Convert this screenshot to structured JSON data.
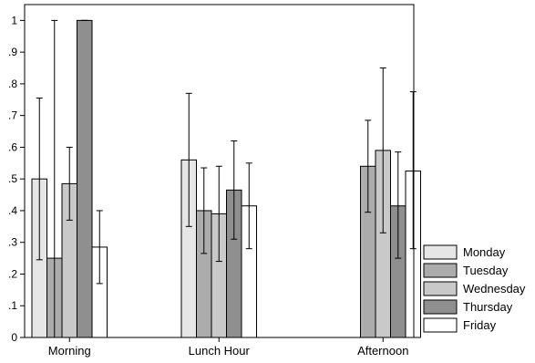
{
  "chart_data": {
    "type": "bar",
    "categories": [
      "Morning",
      "Lunch Hour",
      "Afternoon"
    ],
    "y_ticks": [
      {
        "value": 0,
        "label": "0"
      },
      {
        "value": 0.1,
        "label": ".1"
      },
      {
        "value": 0.2,
        "label": ".2"
      },
      {
        "value": 0.3,
        "label": ".3"
      },
      {
        "value": 0.4,
        "label": ".4"
      },
      {
        "value": 0.5,
        "label": ".5"
      },
      {
        "value": 0.6,
        "label": ".6"
      },
      {
        "value": 0.7,
        "label": ".7"
      },
      {
        "value": 0.8,
        "label": ".8"
      },
      {
        "value": 0.9,
        "label": ".9"
      },
      {
        "value": 1,
        "label": "1"
      }
    ],
    "ylim": [
      0,
      1.05
    ],
    "error_bars": true,
    "legend_position": "right-bottom",
    "series": [
      {
        "name": "Monday",
        "color": "#e6e6e6",
        "values": [
          0.5,
          0.56,
          null
        ],
        "lower": [
          0.245,
          0.35,
          null
        ],
        "upper": [
          0.755,
          0.77,
          null
        ]
      },
      {
        "name": "Tuesday",
        "color": "#acacac",
        "values": [
          0.25,
          0.4,
          0.54
        ],
        "lower": [
          0.0,
          0.265,
          0.395
        ],
        "upper": [
          1.0,
          0.535,
          0.685
        ]
      },
      {
        "name": "Wednesday",
        "color": "#c9c9c9",
        "values": [
          0.485,
          0.39,
          0.59
        ],
        "lower": [
          0.37,
          0.24,
          0.33
        ],
        "upper": [
          0.6,
          0.54,
          0.85
        ]
      },
      {
        "name": "Thursday",
        "color": "#8f8f8f",
        "values": [
          1.0,
          0.465,
          0.415
        ],
        "lower": [
          1.0,
          0.31,
          0.25
        ],
        "upper": [
          1.0,
          0.62,
          0.585
        ]
      },
      {
        "name": "Friday",
        "color": "#ffffff",
        "values": [
          0.285,
          0.415,
          0.525
        ],
        "lower": [
          0.17,
          0.28,
          0.28
        ],
        "upper": [
          0.4,
          0.55,
          0.775
        ]
      }
    ]
  }
}
